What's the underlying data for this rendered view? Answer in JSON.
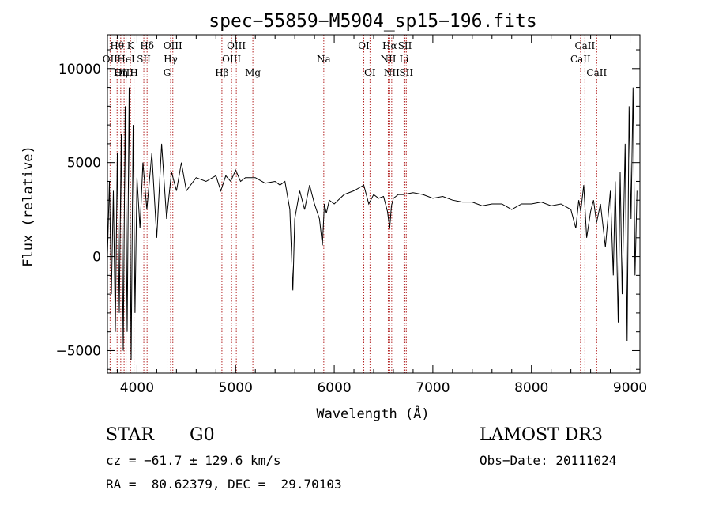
{
  "chart_data": {
    "type": "line",
    "title": "spec−55859−M5904_sp15−196.fits",
    "xlabel": "Wavelength (Å)",
    "ylabel": "Flux (relative)",
    "xlim": [
      3700,
      9100
    ],
    "ylim": [
      -6200,
      11800
    ],
    "xticks": [
      4000,
      5000,
      6000,
      7000,
      8000,
      9000
    ],
    "yticks": [
      -5000,
      0,
      5000,
      10000
    ],
    "ytick_labels": [
      "−5000",
      "0",
      "5000",
      "10000"
    ],
    "grid": false,
    "legend": "none",
    "line_color": "#000000",
    "marker_color": "#b22222",
    "line_markers": [
      {
        "label": "OII",
        "wavelength": 3727,
        "row": 2
      },
      {
        "label": "Hθ",
        "wavelength": 3798,
        "row": 1
      },
      {
        "label": "OIII",
        "wavelength": 3869,
        "row": 3
      },
      {
        "label": "HeI",
        "wavelength": 3889,
        "row": 2
      },
      {
        "label": "Hη",
        "wavelength": 3835,
        "row": 3
      },
      {
        "label": "K",
        "wavelength": 3934,
        "row": 1
      },
      {
        "label": "SII",
        "wavelength": 4069,
        "row": 2
      },
      {
        "label": "H",
        "wavelength": 3969,
        "row": 3
      },
      {
        "label": "Hδ",
        "wavelength": 4102,
        "row": 1
      },
      {
        "label": "OIII",
        "wavelength": 4363,
        "row": 1
      },
      {
        "label": "Hγ",
        "wavelength": 4341,
        "row": 2
      },
      {
        "label": "G",
        "wavelength": 4305,
        "row": 3
      },
      {
        "label": "Hβ",
        "wavelength": 4861,
        "row": 3
      },
      {
        "label": "OIII",
        "wavelength": 5007,
        "row": 1
      },
      {
        "label": "OIII",
        "wavelength": 4959,
        "row": 2
      },
      {
        "label": "Mg",
        "wavelength": 5175,
        "row": 3
      },
      {
        "label": "Na",
        "wavelength": 5894,
        "row": 2
      },
      {
        "label": "OI",
        "wavelength": 6300,
        "row": 1
      },
      {
        "label": "OI",
        "wavelength": 6363,
        "row": 3
      },
      {
        "label": "Hα",
        "wavelength": 6563,
        "row": 1
      },
      {
        "label": "NII",
        "wavelength": 6548,
        "row": 2
      },
      {
        "label": "NII",
        "wavelength": 6583,
        "row": 3
      },
      {
        "label": "SII",
        "wavelength": 6717,
        "row": 1
      },
      {
        "label": "Li",
        "wavelength": 6708,
        "row": 2
      },
      {
        "label": "SII",
        "wavelength": 6731,
        "row": 3
      },
      {
        "label": "CaII",
        "wavelength": 8542,
        "row": 1
      },
      {
        "label": "CaII",
        "wavelength": 8498,
        "row": 2
      },
      {
        "label": "CaII",
        "wavelength": 8662,
        "row": 3
      }
    ],
    "series": [
      {
        "name": "spectrum",
        "x": [
          3700,
          3720,
          3740,
          3760,
          3780,
          3800,
          3820,
          3840,
          3860,
          3880,
          3900,
          3920,
          3940,
          3960,
          3980,
          4000,
          4030,
          4060,
          4100,
          4150,
          4200,
          4250,
          4300,
          4350,
          4400,
          4450,
          4500,
          4600,
          4700,
          4800,
          4850,
          4900,
          4950,
          5000,
          5050,
          5100,
          5200,
          5300,
          5400,
          5450,
          5500,
          5550,
          5580,
          5600,
          5650,
          5700,
          5750,
          5800,
          5850,
          5880,
          5900,
          5920,
          5950,
          6000,
          6100,
          6200,
          6300,
          6350,
          6400,
          6450,
          6500,
          6540,
          6563,
          6580,
          6600,
          6650,
          6700,
          6800,
          6900,
          7000,
          7100,
          7200,
          7300,
          7400,
          7500,
          7600,
          7700,
          7800,
          7900,
          8000,
          8100,
          8200,
          8300,
          8400,
          8450,
          8480,
          8500,
          8530,
          8560,
          8600,
          8630,
          8660,
          8700,
          8750,
          8800,
          8830,
          8850,
          8880,
          8900,
          8920,
          8950,
          8970,
          8990,
          9010,
          9030,
          9050,
          9070
        ],
        "y": [
          0,
          4000,
          -2000,
          3500,
          -4000,
          5500,
          -3000,
          6500,
          -5000,
          8000,
          -4000,
          9000,
          -5500,
          7000,
          -3000,
          4200,
          1500,
          5000,
          2500,
          5500,
          1000,
          6000,
          2000,
          4500,
          3500,
          5000,
          3500,
          4200,
          4000,
          4300,
          3500,
          4300,
          4000,
          4600,
          4000,
          4200,
          4200,
          3900,
          4000,
          3800,
          4000,
          2500,
          -1800,
          2000,
          3500,
          2500,
          3800,
          2800,
          2000,
          600,
          2800,
          2300,
          3000,
          2800,
          3300,
          3500,
          3800,
          2800,
          3300,
          3100,
          3200,
          2400,
          1500,
          2700,
          3100,
          3300,
          3300,
          3400,
          3300,
          3100,
          3200,
          3000,
          2900,
          2900,
          2700,
          2800,
          2800,
          2500,
          2800,
          2800,
          2900,
          2700,
          2800,
          2500,
          1500,
          3000,
          2400,
          3800,
          1000,
          2400,
          3000,
          1800,
          2800,
          500,
          3500,
          -1000,
          4000,
          -3500,
          4500,
          -2000,
          6000,
          -4500,
          8000,
          2000,
          9000,
          -1000,
          3500
        ]
      }
    ]
  },
  "info": {
    "object_class": "STAR",
    "subclass": "G0",
    "survey": "LAMOST DR3",
    "velocity": "cz = −61.7 ± 129.6 km/s",
    "obs_date": "Obs−Date: 20111024",
    "coords": "RA =  80.62379, DEC =  29.70103"
  }
}
